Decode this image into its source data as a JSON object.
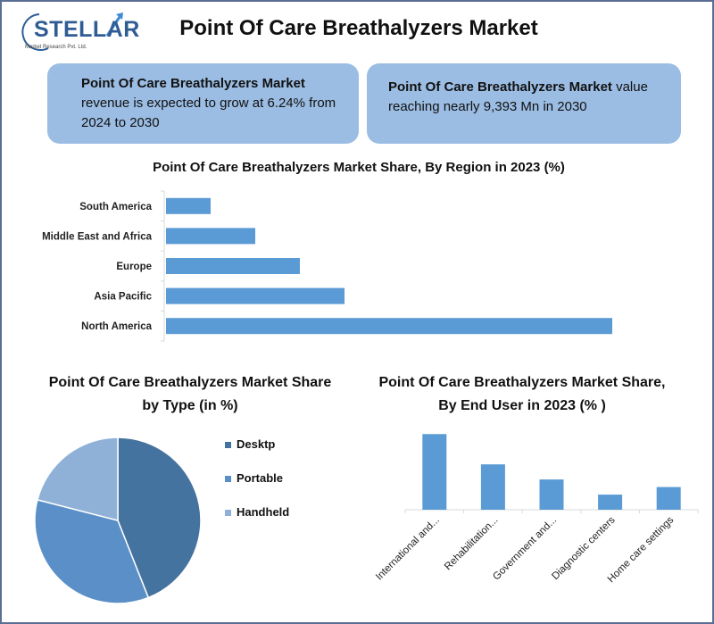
{
  "header": {
    "logo_text": "STELLAR",
    "logo_sub": "Market Research Pvt. Ltd.",
    "title": "Point Of Care Breathalyzers Market"
  },
  "info_boxes": {
    "left_bold": "Point Of Care Breathalyzers Market",
    "left_text": "revenue is expected to grow at 6.24% from 2024 to 2030",
    "right_bold": "Point Of Care Breathalyzers Market",
    "right_text": " value reaching nearly 9,393 Mn in 2030"
  },
  "colors": {
    "bar_fill": "#5b9bd5",
    "box_fill": "#9bbde3",
    "pie_desktp": "#44739f",
    "pie_portable": "#5b8fc7",
    "pie_handheld": "#8fb1d8"
  },
  "chart_data": [
    {
      "type": "bar",
      "orientation": "horizontal",
      "title": "Point Of Care Breathalyzers Market Share, By Region in 2023 (%)",
      "categories": [
        "South America",
        "Middle East and Africa",
        "Europe",
        "Asia Pacific",
        "North America"
      ],
      "values": [
        5,
        10,
        15,
        20,
        50
      ],
      "xlim": [
        0,
        52
      ],
      "grid": false,
      "xlabel": "",
      "ylabel": ""
    },
    {
      "type": "pie",
      "title": "Point Of Care Breathalyzers Market Share by Type (in %)",
      "labels": [
        "Desktp",
        "Portable",
        "Handheld"
      ],
      "values": [
        44,
        35,
        21
      ],
      "legend": "right"
    },
    {
      "type": "bar",
      "title": "Point Of Care Breathalyzers Market Share, By End User in 2023 (% )",
      "categories": [
        "International and...",
        "Rehabilitation...",
        "Government and...",
        "Diagnostic centers",
        "Home care settings"
      ],
      "values": [
        35,
        21,
        14,
        7,
        10.5
      ],
      "ylim": [
        0,
        38
      ],
      "grid": false,
      "xlabel": "",
      "ylabel": ""
    }
  ]
}
